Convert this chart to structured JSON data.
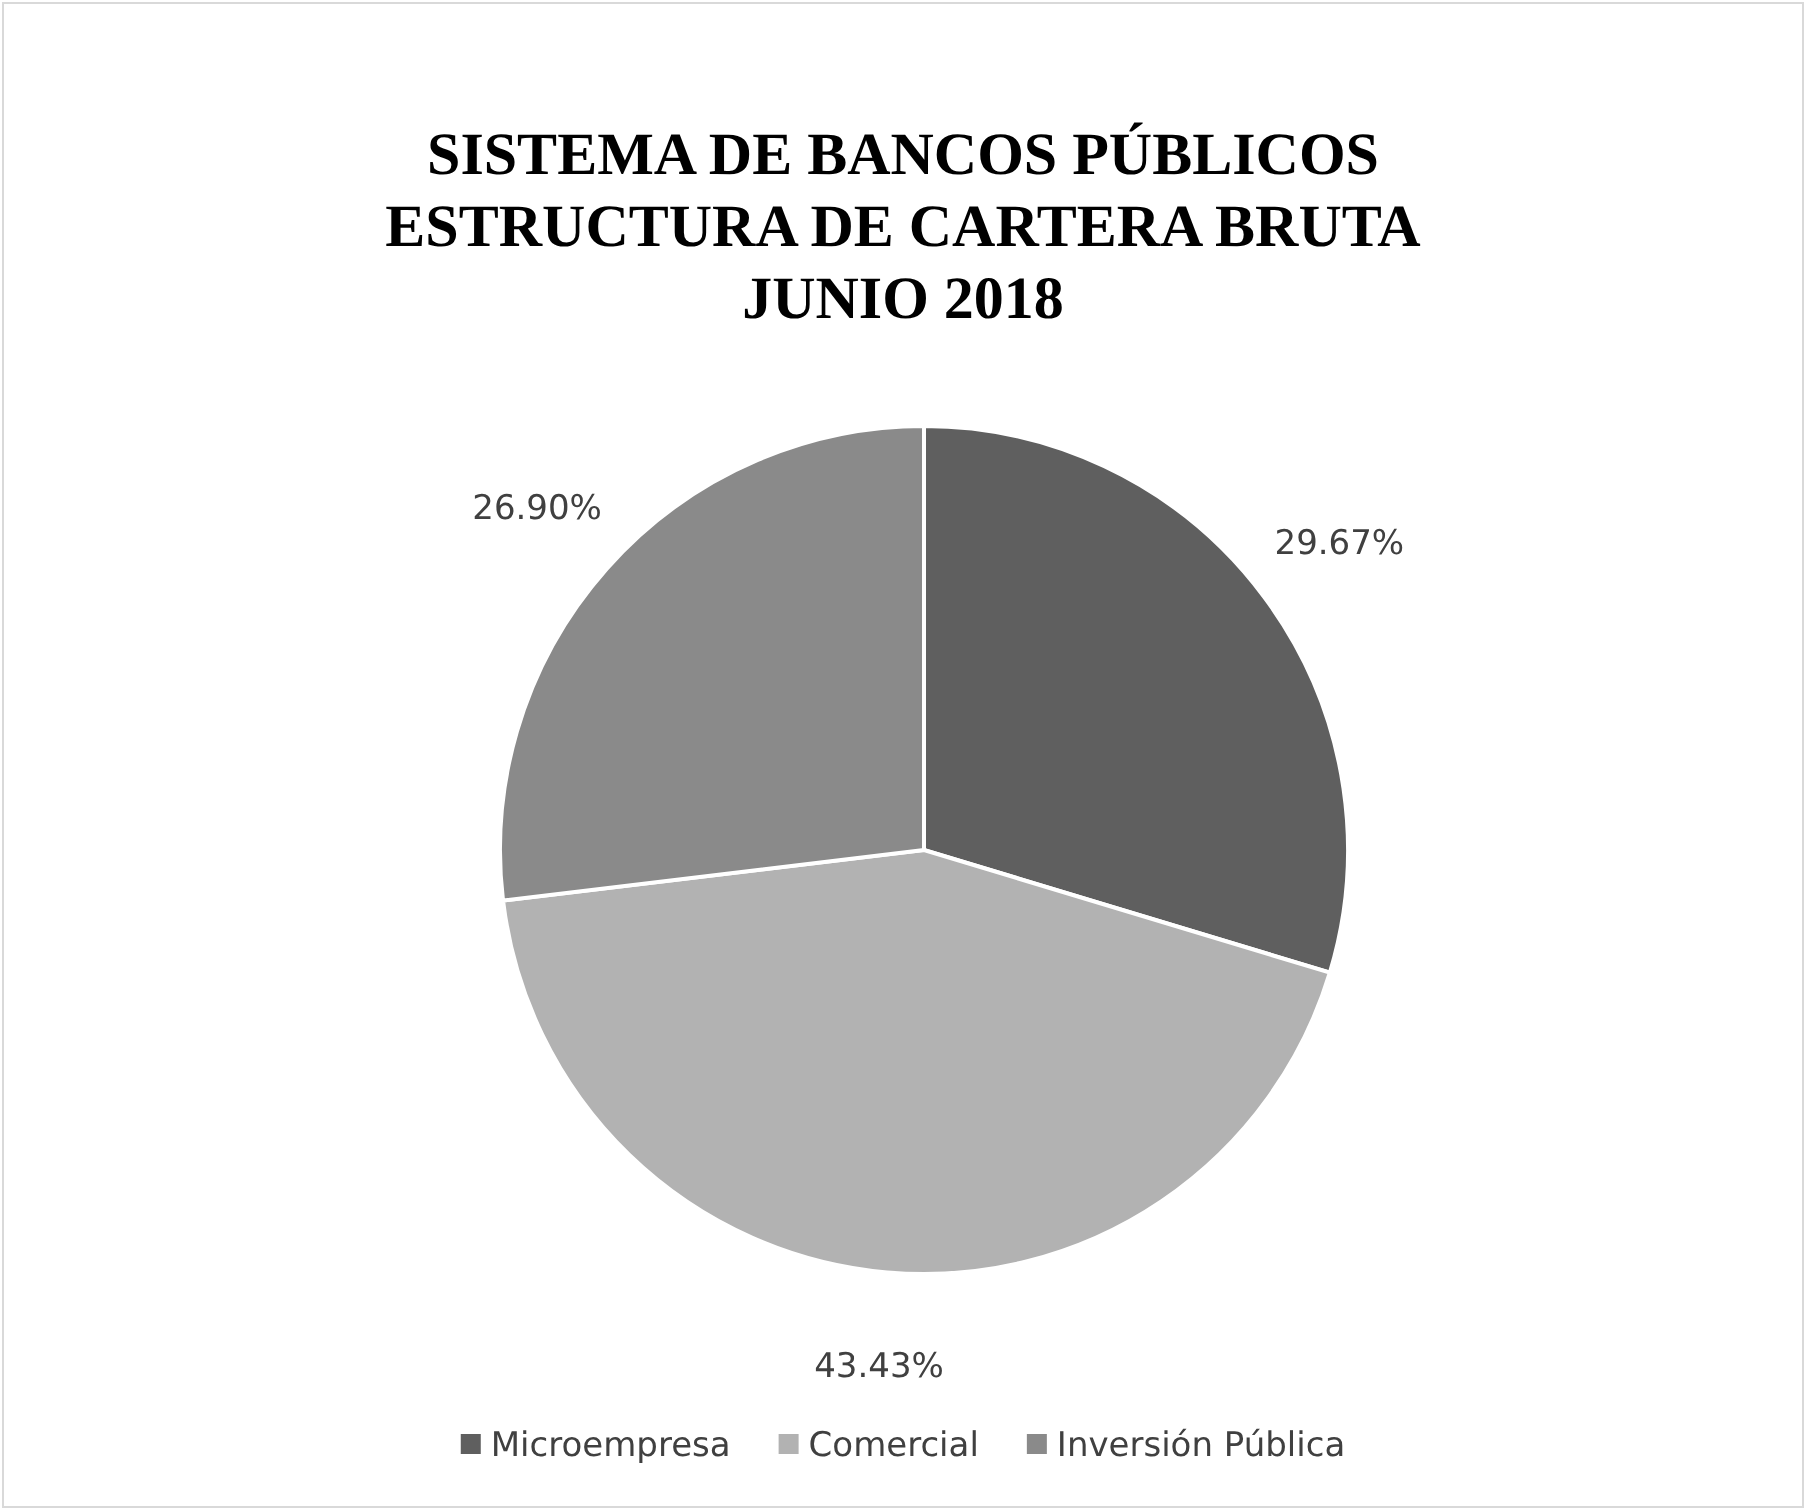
{
  "chart_data": {
    "type": "pie",
    "title": "SISTEMA DE BANCOS PÚBLICOS\nESTRUCTURA DE CARTERA BRUTA\nJUNIO 2018",
    "categories": [
      "Microempresa",
      "Comercial",
      "Inversión Pública"
    ],
    "values": [
      29.67,
      43.43,
      26.9
    ],
    "colors": [
      "#5f5f5f",
      "#b2b2b2",
      "#8a8a8a"
    ],
    "value_labels": [
      "29.67%",
      "43.43%",
      "26.90%"
    ],
    "legend": "bottom"
  }
}
